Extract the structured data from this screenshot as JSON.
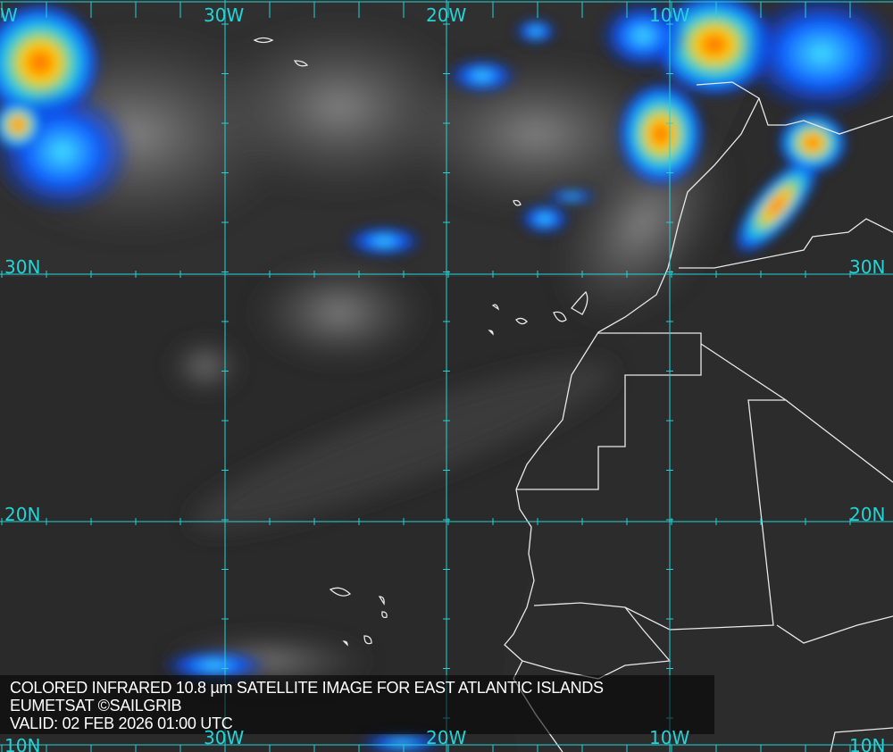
{
  "map": {
    "caption": {
      "title": "COLORED INFRARED 10.8 µm SATELLITE IMAGE FOR EAST ATLANTIC ISLANDS",
      "source": "EUMETSAT ©SAILGRIB",
      "valid": "VALID:  02 FEB 2026 01:00 UTC"
    },
    "longitude_labels": [
      "30W",
      "20W",
      "10W"
    ],
    "latitude_labels": [
      "30N",
      "20N",
      "10N"
    ],
    "edge_label": "W",
    "colors": {
      "grid": "#22d3d8",
      "coast": "#e8e8e8",
      "ocean": "#262626"
    }
  }
}
